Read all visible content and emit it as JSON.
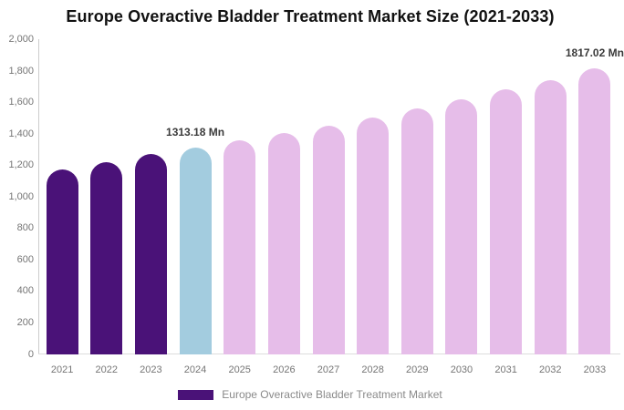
{
  "title": "Europe Overactive Bladder Treatment Market Size (2021-2033)",
  "legend": {
    "label": "Europe Overactive Bladder Treatment Market",
    "swatch_color": "#4A1278"
  },
  "colors": {
    "historical_bar": "#4A1278",
    "current_year_bar": "#A3CCDF",
    "forecast_bar": "#E6BDE9",
    "axis_line": "#cccccc",
    "tick_text": "#757575",
    "data_label_text": "#3a3a3a",
    "title_text": "#111111"
  },
  "chart_data": {
    "type": "bar",
    "title": "Europe Overactive Bladder Treatment Market Size (2021-2033)",
    "xlabel": "",
    "ylabel": "",
    "unit": "Mn",
    "ylim": [
      0,
      2000
    ],
    "y_tick_labels": [
      "2,000",
      "1,800",
      "1,600",
      "1,400",
      "1,200",
      "1,000",
      "800",
      "600",
      "400",
      "200",
      "0"
    ],
    "grid": false,
    "legend_position": "bottom",
    "categories": [
      "2021",
      "2022",
      "2023",
      "2024",
      "2025",
      "2026",
      "2027",
      "2028",
      "2029",
      "2030",
      "2031",
      "2032",
      "2033"
    ],
    "values": [
      1170,
      1220,
      1270,
      1313.18,
      1355,
      1403,
      1452,
      1505,
      1561,
      1620,
      1681,
      1742,
      1817.02
    ],
    "bar_colors": [
      "#4A1278",
      "#4A1278",
      "#4A1278",
      "#A3CCDF",
      "#E6BDE9",
      "#E6BDE9",
      "#E6BDE9",
      "#E6BDE9",
      "#E6BDE9",
      "#E6BDE9",
      "#E6BDE9",
      "#E6BDE9",
      "#E6BDE9"
    ],
    "data_labels": [
      {
        "index": 3,
        "text": "1313.18 Mn"
      },
      {
        "index": 12,
        "text": "1817.02 Mn"
      }
    ]
  }
}
